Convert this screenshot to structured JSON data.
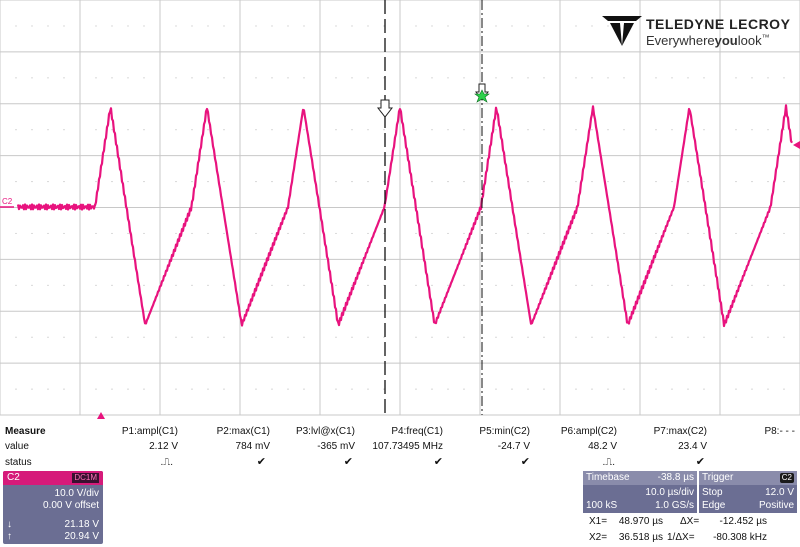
{
  "brand": {
    "name": "TELEDYNE LECROY",
    "tagline_pre": "Everywhere",
    "tagline_bold": "you",
    "tagline_post": "look",
    "tm": "™"
  },
  "channel_marker": "C2",
  "measure": {
    "header": "Measure",
    "row_value": "value",
    "row_status": "status",
    "params": [
      {
        "name": "P1:ampl(C1)",
        "value": "2.12 V",
        "status": "pulse"
      },
      {
        "name": "P2:max(C1)",
        "value": "784 mV",
        "status": "check"
      },
      {
        "name": "P3:lvl@x(C1)",
        "value": "-365 mV",
        "status": "check"
      },
      {
        "name": "P4:freq(C1)",
        "value": "107.73495 MHz",
        "status": "check"
      },
      {
        "name": "P5:min(C2)",
        "value": "-24.7 V",
        "status": "check"
      },
      {
        "name": "P6:ampl(C2)",
        "value": "48.2 V",
        "status": "pulse"
      },
      {
        "name": "P7:max(C2)",
        "value": "23.4 V",
        "status": "check"
      },
      {
        "name": "P8:- - -",
        "value": "",
        "status": ""
      }
    ],
    "status_symbols": {
      "pulse": ".⎍.",
      "check": "✔"
    }
  },
  "channel_box": {
    "label": "C2",
    "coupling": "DC1M",
    "vdiv": "10.0 V/div",
    "offset": "0.00 V offset",
    "cursor1_arrow": "↓",
    "cursor1": "21.18 V",
    "cursor2_arrow": "↑",
    "cursor2": "20.94 V"
  },
  "timebase": {
    "label": "Timebase",
    "delay": "-38.8 µs",
    "tdiv": "10.0 µs/div",
    "samples": "100 kS",
    "rate": "1.0 GS/s"
  },
  "trigger": {
    "label": "Trigger",
    "badge": "C2",
    "mode": "Stop",
    "level": "12.0 V",
    "type": "Edge",
    "slope": "Positive"
  },
  "cursors": {
    "x1_label": "X1=",
    "x1": "48.970 µs",
    "dx_label": "ΔX=",
    "dx": "-12.452 µs",
    "x2_label": "X2=",
    "x2": "36.518 µs",
    "inv_dx_label": "1/ΔX=",
    "inv_dx": "-80.308 kHz"
  },
  "colors": {
    "trace": "#e8137e",
    "grid": "#c8c8c8",
    "panel": "#6b6e93",
    "channel": "#d61a7a"
  }
}
